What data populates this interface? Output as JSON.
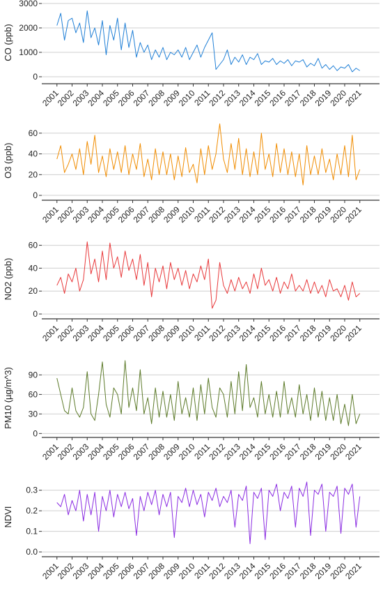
{
  "chart_data": [
    {
      "type": "line",
      "ylabel": "CO (ppb)",
      "color": "#1f7fd6",
      "grid": true,
      "xlim": [
        2000,
        2022.3
      ],
      "xticks": [
        2001,
        2002,
        2003,
        2004,
        2005,
        2006,
        2007,
        2008,
        2009,
        2010,
        2011,
        2012,
        2013,
        2014,
        2015,
        2016,
        2017,
        2018,
        2019,
        2020,
        2021
      ],
      "ylim": [
        -200,
        3000
      ],
      "yticks": [
        0,
        1000,
        2000,
        3000
      ],
      "x": [
        2001,
        2001.25,
        2001.5,
        2001.75,
        2002,
        2002.25,
        2002.5,
        2002.75,
        2003,
        2003.25,
        2003.5,
        2003.75,
        2004,
        2004.25,
        2004.5,
        2004.75,
        2005,
        2005.25,
        2005.5,
        2005.75,
        2006,
        2006.25,
        2006.5,
        2006.75,
        2007,
        2007.25,
        2007.5,
        2007.75,
        2008,
        2008.25,
        2008.5,
        2008.75,
        2009,
        2009.25,
        2009.5,
        2009.75,
        2010,
        2010.25,
        2010.5,
        2010.75,
        2011,
        2011.25,
        2011.5,
        2011.75,
        2012,
        2012.25,
        2012.5,
        2012.75,
        2013,
        2013.25,
        2013.5,
        2013.75,
        2014,
        2014.25,
        2014.5,
        2014.75,
        2015,
        2015.25,
        2015.5,
        2015.75,
        2016,
        2016.25,
        2016.5,
        2016.75,
        2017,
        2017.25,
        2017.5,
        2017.75,
        2018,
        2018.25,
        2018.5,
        2018.75,
        2019,
        2019.25,
        2019.5,
        2019.75,
        2020,
        2020.25,
        2020.5,
        2020.75,
        2021
      ],
      "values": [
        2100,
        2600,
        1500,
        2300,
        2400,
        1800,
        2200,
        1400,
        2700,
        1600,
        2000,
        1300,
        2300,
        900,
        2100,
        1500,
        2400,
        1100,
        2200,
        1200,
        1900,
        800,
        1400,
        1000,
        1300,
        700,
        1100,
        800,
        1200,
        700,
        1000,
        900,
        1100,
        800,
        1200,
        700,
        1000,
        1300,
        800,
        1200,
        1500,
        1800,
        300,
        500,
        700,
        1100,
        500,
        800,
        600,
        900,
        500,
        800,
        700,
        950,
        500,
        650,
        600,
        750,
        500,
        650,
        550,
        700,
        450,
        650,
        600,
        700,
        400,
        550,
        450,
        750,
        350,
        500,
        300,
        450,
        250,
        400,
        350,
        500,
        200,
        350,
        250
      ]
    },
    {
      "type": "line",
      "ylabel": "O3 (ppb)",
      "color": "#f08c00",
      "grid": true,
      "xlim": [
        2000,
        2022.3
      ],
      "xticks": [
        2001,
        2002,
        2003,
        2004,
        2005,
        2006,
        2007,
        2008,
        2009,
        2010,
        2011,
        2012,
        2013,
        2014,
        2015,
        2016,
        2017,
        2018,
        2019,
        2020,
        2021
      ],
      "ylim": [
        -3,
        70
      ],
      "yticks": [
        0,
        20,
        40,
        60
      ],
      "x": [
        2001,
        2001.25,
        2001.5,
        2001.75,
        2002,
        2002.25,
        2002.5,
        2002.75,
        2003,
        2003.25,
        2003.5,
        2003.75,
        2004,
        2004.25,
        2004.5,
        2004.75,
        2005,
        2005.25,
        2005.5,
        2005.75,
        2006,
        2006.25,
        2006.5,
        2006.75,
        2007,
        2007.25,
        2007.5,
        2007.75,
        2008,
        2008.25,
        2008.5,
        2008.75,
        2009,
        2009.25,
        2009.5,
        2009.75,
        2010,
        2010.25,
        2010.5,
        2010.75,
        2011,
        2011.25,
        2011.5,
        2011.75,
        2012,
        2012.25,
        2012.5,
        2012.75,
        2013,
        2013.25,
        2013.5,
        2013.75,
        2014,
        2014.25,
        2014.5,
        2014.75,
        2015,
        2015.25,
        2015.5,
        2015.75,
        2016,
        2016.25,
        2016.5,
        2016.75,
        2017,
        2017.25,
        2017.5,
        2017.75,
        2018,
        2018.25,
        2018.5,
        2018.75,
        2019,
        2019.25,
        2019.5,
        2019.75,
        2020,
        2020.25,
        2020.5,
        2020.75,
        2021
      ],
      "values": [
        35,
        48,
        22,
        30,
        40,
        25,
        45,
        20,
        52,
        30,
        58,
        22,
        38,
        18,
        45,
        25,
        42,
        22,
        48,
        20,
        40,
        25,
        50,
        18,
        35,
        15,
        45,
        20,
        42,
        20,
        40,
        15,
        38,
        18,
        46,
        22,
        30,
        12,
        45,
        20,
        48,
        25,
        40,
        69,
        35,
        22,
        50,
        25,
        55,
        20,
        45,
        18,
        42,
        20,
        60,
        25,
        40,
        18,
        50,
        22,
        45,
        20,
        42,
        18,
        40,
        10,
        48,
        20,
        38,
        20,
        45,
        22,
        35,
        15,
        40,
        20,
        48,
        18,
        58,
        15,
        25
      ]
    },
    {
      "type": "line",
      "ylabel": "NO2 (ppb)",
      "color": "#e8383a",
      "grid": true,
      "xlim": [
        2000,
        2022.3
      ],
      "xticks": [
        2001,
        2002,
        2003,
        2004,
        2005,
        2006,
        2007,
        2008,
        2009,
        2010,
        2011,
        2012,
        2013,
        2014,
        2015,
        2016,
        2017,
        2018,
        2019,
        2020,
        2021
      ],
      "ylim": [
        -3,
        64
      ],
      "yticks": [
        0,
        20,
        40,
        60
      ],
      "x": [
        2001,
        2001.25,
        2001.5,
        2001.75,
        2002,
        2002.25,
        2002.5,
        2002.75,
        2003,
        2003.25,
        2003.5,
        2003.75,
        2004,
        2004.25,
        2004.5,
        2004.75,
        2005,
        2005.25,
        2005.5,
        2005.75,
        2006,
        2006.25,
        2006.5,
        2006.75,
        2007,
        2007.25,
        2007.5,
        2007.75,
        2008,
        2008.25,
        2008.5,
        2008.75,
        2009,
        2009.25,
        2009.5,
        2009.75,
        2010,
        2010.25,
        2010.5,
        2010.75,
        2011,
        2011.25,
        2011.5,
        2011.75,
        2012,
        2012.25,
        2012.5,
        2012.75,
        2013,
        2013.25,
        2013.5,
        2013.75,
        2014,
        2014.25,
        2014.5,
        2014.75,
        2015,
        2015.25,
        2015.5,
        2015.75,
        2016,
        2016.25,
        2016.5,
        2016.75,
        2017,
        2017.25,
        2017.5,
        2017.75,
        2018,
        2018.25,
        2018.5,
        2018.75,
        2019,
        2019.25,
        2019.5,
        2019.75,
        2020,
        2020.25,
        2020.5,
        2020.75,
        2021
      ],
      "values": [
        25,
        32,
        18,
        35,
        28,
        40,
        20,
        30,
        63,
        35,
        48,
        28,
        55,
        30,
        62,
        40,
        50,
        32,
        55,
        38,
        48,
        30,
        52,
        25,
        45,
        15,
        40,
        28,
        42,
        22,
        45,
        30,
        40,
        25,
        38,
        22,
        35,
        28,
        42,
        30,
        48,
        5,
        12,
        45,
        25,
        18,
        30,
        20,
        32,
        22,
        28,
        18,
        35,
        22,
        40,
        25,
        30,
        20,
        32,
        18,
        28,
        22,
        35,
        20,
        25,
        20,
        30,
        18,
        28,
        18,
        25,
        15,
        30,
        20,
        22,
        15,
        25,
        12,
        28,
        15,
        18
      ]
    },
    {
      "type": "line",
      "ylabel": "PM10 (µg/m^3)",
      "color": "#5c7a29",
      "grid": true,
      "xlim": [
        2000,
        2022.3
      ],
      "xticks": [
        2001,
        2002,
        2003,
        2004,
        2005,
        2006,
        2007,
        2008,
        2009,
        2010,
        2011,
        2012,
        2013,
        2014,
        2015,
        2016,
        2017,
        2018,
        2019,
        2020,
        2021
      ],
      "ylim": [
        -5,
        114
      ],
      "yticks": [
        0,
        30,
        60,
        90
      ],
      "x": [
        2001,
        2001.25,
        2001.5,
        2001.75,
        2002,
        2002.25,
        2002.5,
        2002.75,
        2003,
        2003.25,
        2003.5,
        2003.75,
        2004,
        2004.25,
        2004.5,
        2004.75,
        2005,
        2005.25,
        2005.5,
        2005.75,
        2006,
        2006.25,
        2006.5,
        2006.75,
        2007,
        2007.25,
        2007.5,
        2007.75,
        2008,
        2008.25,
        2008.5,
        2008.75,
        2009,
        2009.25,
        2009.5,
        2009.75,
        2010,
        2010.25,
        2010.5,
        2010.75,
        2011,
        2011.25,
        2011.5,
        2011.75,
        2012,
        2012.25,
        2012.5,
        2012.75,
        2013,
        2013.25,
        2013.5,
        2013.75,
        2014,
        2014.25,
        2014.5,
        2014.75,
        2015,
        2015.25,
        2015.5,
        2015.75,
        2016,
        2016.25,
        2016.5,
        2016.75,
        2017,
        2017.25,
        2017.5,
        2017.75,
        2018,
        2018.25,
        2018.5,
        2018.75,
        2019,
        2019.25,
        2019.5,
        2019.75,
        2020,
        2020.25,
        2020.5,
        2020.75,
        2021
      ],
      "values": [
        85,
        60,
        35,
        30,
        70,
        35,
        25,
        40,
        95,
        30,
        20,
        60,
        110,
        45,
        25,
        70,
        60,
        30,
        112,
        40,
        70,
        35,
        98,
        30,
        55,
        15,
        70,
        25,
        65,
        25,
        60,
        20,
        80,
        30,
        55,
        25,
        70,
        20,
        75,
        30,
        85,
        40,
        25,
        70,
        60,
        25,
        80,
        30,
        95,
        35,
        106,
        40,
        55,
        25,
        80,
        30,
        60,
        25,
        65,
        25,
        80,
        30,
        55,
        25,
        75,
        30,
        60,
        20,
        70,
        25,
        65,
        20,
        55,
        20,
        60,
        15,
        45,
        12,
        60,
        15,
        30
      ]
    },
    {
      "type": "line",
      "ylabel": "NDVI",
      "color": "#8a2be2",
      "grid": true,
      "xlim": [
        2000,
        2022.3
      ],
      "xticks": [
        2001,
        2002,
        2003,
        2004,
        2005,
        2006,
        2007,
        2008,
        2009,
        2010,
        2011,
        2012,
        2013,
        2014,
        2015,
        2016,
        2017,
        2018,
        2019,
        2020,
        2021
      ],
      "ylim": [
        -0.02,
        0.36
      ],
      "yticks": [
        {
          "value": 0,
          "label": "0.0"
        },
        0.1,
        0.2,
        0.3
      ],
      "x": [
        2001,
        2001.25,
        2001.5,
        2001.75,
        2002,
        2002.25,
        2002.5,
        2002.75,
        2003,
        2003.25,
        2003.5,
        2003.75,
        2004,
        2004.25,
        2004.5,
        2004.75,
        2005,
        2005.25,
        2005.5,
        2005.75,
        2006,
        2006.25,
        2006.5,
        2006.75,
        2007,
        2007.25,
        2007.5,
        2007.75,
        2008,
        2008.25,
        2008.5,
        2008.75,
        2009,
        2009.25,
        2009.5,
        2009.75,
        2010,
        2010.25,
        2010.5,
        2010.75,
        2011,
        2011.25,
        2011.5,
        2011.75,
        2012,
        2012.25,
        2012.5,
        2012.75,
        2013,
        2013.25,
        2013.5,
        2013.75,
        2014,
        2014.25,
        2014.5,
        2014.75,
        2015,
        2015.25,
        2015.5,
        2015.75,
        2016,
        2016.25,
        2016.5,
        2016.75,
        2017,
        2017.25,
        2017.5,
        2017.75,
        2018,
        2018.25,
        2018.5,
        2018.75,
        2019,
        2019.25,
        2019.5,
        2019.75,
        2020,
        2020.25,
        2020.5,
        2020.75,
        2021
      ],
      "values": [
        0.24,
        0.22,
        0.28,
        0.18,
        0.25,
        0.2,
        0.3,
        0.15,
        0.28,
        0.18,
        0.29,
        0.1,
        0.27,
        0.2,
        0.3,
        0.17,
        0.28,
        0.22,
        0.29,
        0.21,
        0.26,
        0.08,
        0.27,
        0.2,
        0.29,
        0.23,
        0.3,
        0.18,
        0.28,
        0.22,
        0.29,
        0.07,
        0.27,
        0.24,
        0.31,
        0.22,
        0.3,
        0.23,
        0.28,
        0.17,
        0.29,
        0.25,
        0.31,
        0.22,
        0.27,
        0.24,
        0.3,
        0.12,
        0.28,
        0.25,
        0.32,
        0.04,
        0.29,
        0.26,
        0.31,
        0.06,
        0.3,
        0.27,
        0.33,
        0.2,
        0.29,
        0.26,
        0.32,
        0.12,
        0.31,
        0.27,
        0.34,
        0.08,
        0.3,
        0.28,
        0.33,
        0.1,
        0.29,
        0.27,
        0.32,
        0.09,
        0.31,
        0.28,
        0.33,
        0.12,
        0.27
      ]
    }
  ]
}
